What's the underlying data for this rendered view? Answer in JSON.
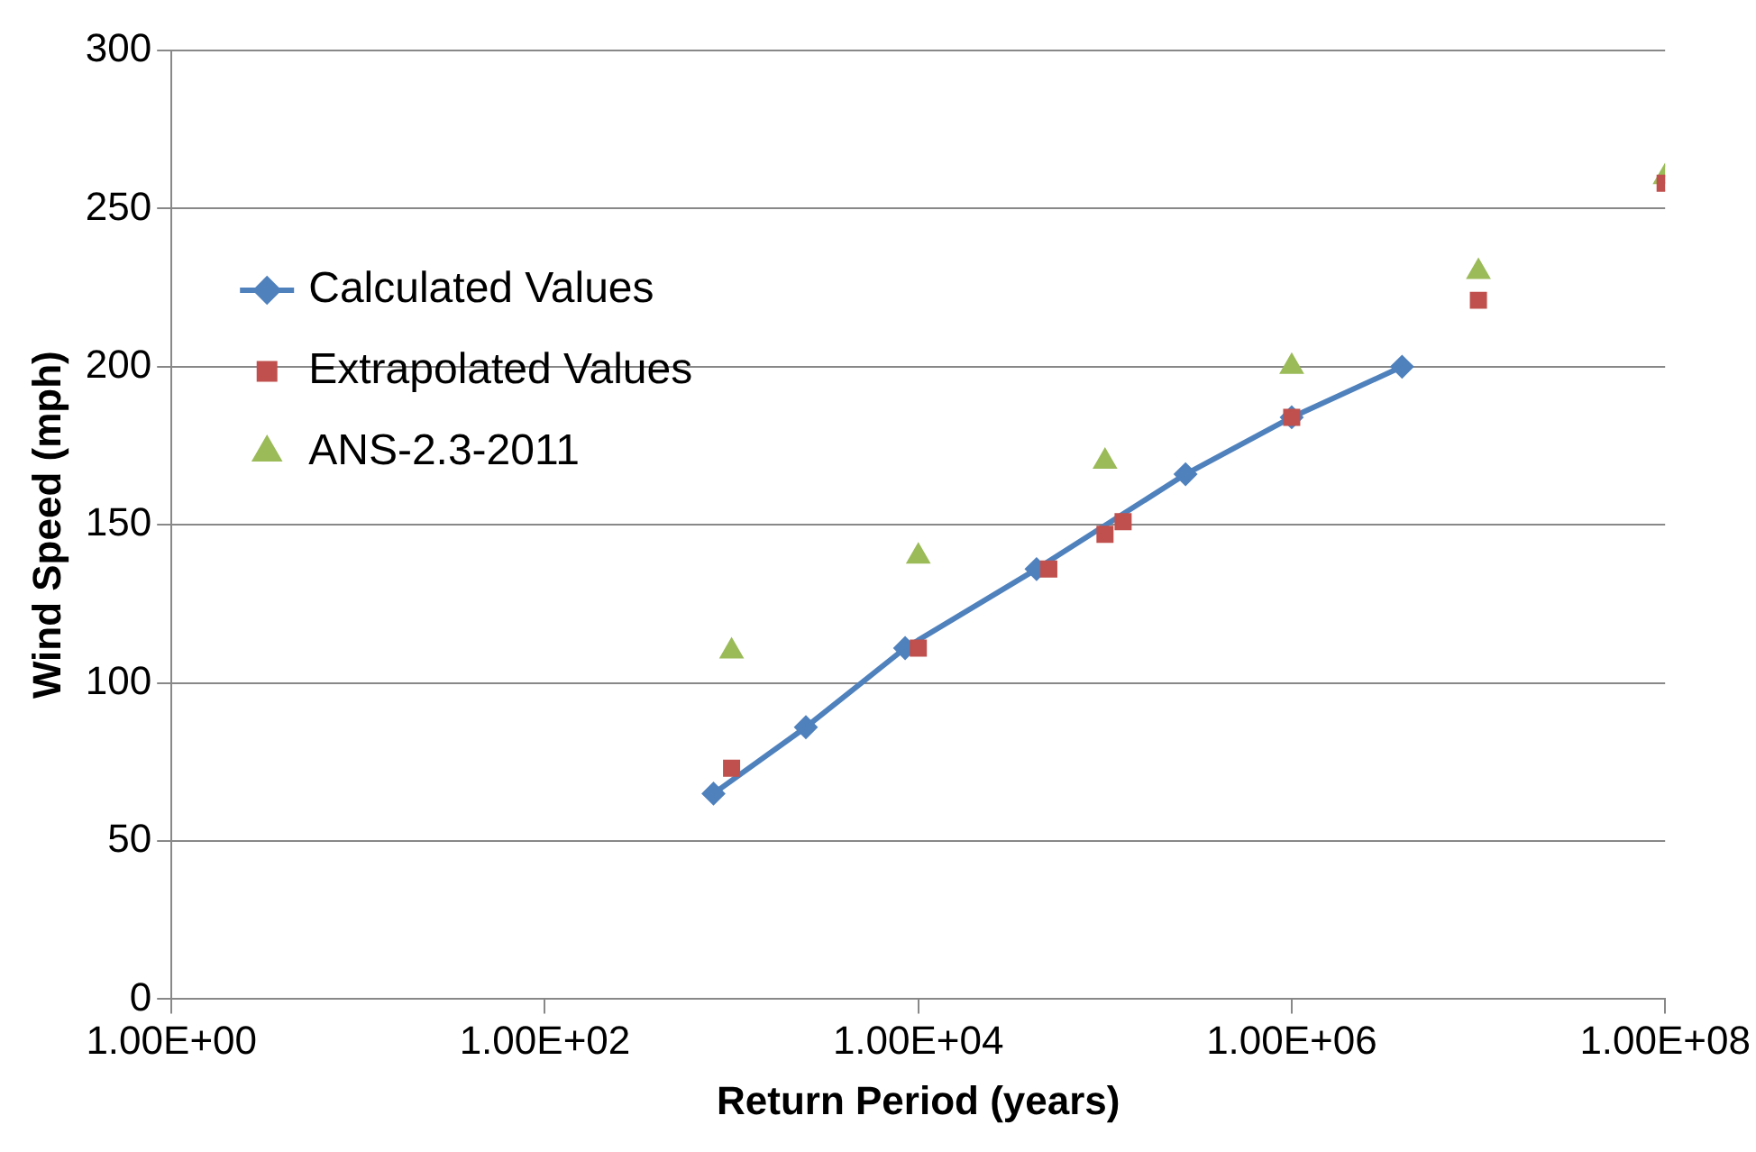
{
  "chart_data": {
    "type": "scatter",
    "xlabel": "Return Period (years)",
    "ylabel": "Wind Speed (mph)",
    "log": "x",
    "xlim": [
      1,
      100000000
    ],
    "xticks": [
      {
        "value": 1,
        "label": "1.00E+00"
      },
      {
        "value": 100,
        "label": "1.00E+02"
      },
      {
        "value": 10000,
        "label": "1.00E+04"
      },
      {
        "value": 1000000,
        "label": "1.00E+06"
      },
      {
        "value": 100000000,
        "label": "1.00E+08"
      }
    ],
    "ylim": [
      0,
      300
    ],
    "yticks": [
      0,
      50,
      100,
      150,
      200,
      250,
      300
    ],
    "grid": "y",
    "legend": "left",
    "series": [
      {
        "name": "Calculated Values",
        "type": "line",
        "marker": "diamond",
        "color": "#4f81bd",
        "x": [
          800,
          2500,
          8500,
          43000,
          270000,
          1000000,
          3900000
        ],
        "values": [
          65,
          86,
          111,
          136,
          166,
          184,
          200
        ]
      },
      {
        "name": "Extrapolated Values",
        "marker": "square",
        "color": "#c0504d",
        "x": [
          1000,
          10000,
          50000,
          100000,
          125000,
          1000000,
          10000000,
          100000000
        ],
        "values": [
          73,
          111,
          136,
          147,
          151,
          184,
          221,
          258
        ]
      },
      {
        "name": "ANS-2.3-2011",
        "marker": "triangle",
        "color": "#9bbb59",
        "x": [
          1000,
          10000,
          100000,
          1000000,
          10000000,
          100000000
        ],
        "values": [
          110,
          140,
          170,
          200,
          230,
          260
        ]
      }
    ]
  }
}
